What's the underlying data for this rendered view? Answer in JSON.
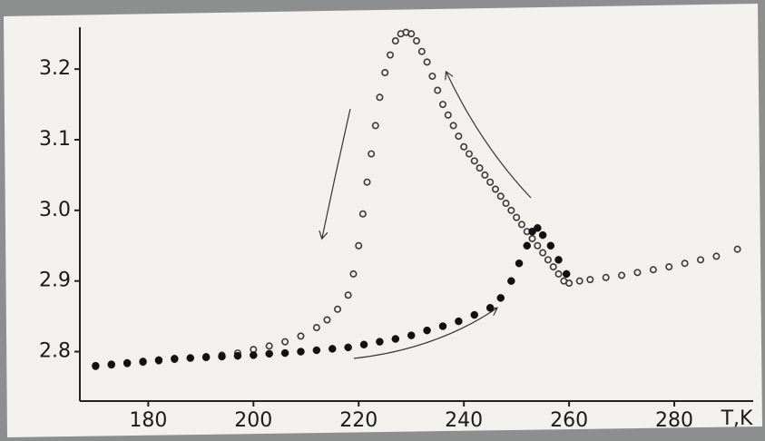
{
  "chart_data": {
    "type": "scatter",
    "x_label": "T,K",
    "xlim": [
      167,
      295
    ],
    "xticks": [
      180,
      200,
      220,
      240,
      260,
      280
    ],
    "ylim": [
      2.73,
      3.285
    ],
    "yticks": [
      2.8,
      2.9,
      {
        "value": 3,
        "label": "3.0"
      },
      3.1,
      3.2
    ],
    "series": [
      {
        "color": "#3a3a3a",
        "marker": "open",
        "x": [
          170,
          173,
          176,
          179,
          182,
          185,
          188,
          191,
          194,
          197,
          200,
          203,
          206,
          209,
          212,
          214,
          216,
          218,
          219,
          220,
          220.8,
          221.6,
          222.4,
          223.2,
          224,
          225,
          226,
          227,
          228,
          229,
          230,
          231,
          232,
          233,
          234,
          235,
          236,
          237,
          238,
          239,
          240,
          241,
          242,
          243,
          244,
          245,
          246,
          247,
          248,
          249,
          250,
          251,
          252,
          253,
          254,
          255,
          256,
          257,
          258,
          259,
          260,
          262,
          264,
          267,
          270,
          273,
          276,
          279,
          282,
          285,
          288,
          292
        ],
        "values": [
          2.779,
          2.781,
          2.783,
          2.785,
          2.787,
          2.789,
          2.791,
          2.793,
          2.795,
          2.798,
          2.803,
          2.808,
          2.814,
          2.822,
          2.834,
          2.845,
          2.86,
          2.88,
          2.91,
          2.95,
          2.995,
          3.04,
          3.08,
          3.12,
          3.16,
          3.195,
          3.22,
          3.24,
          3.25,
          3.252,
          3.25,
          3.24,
          3.225,
          3.21,
          3.19,
          3.17,
          3.15,
          3.135,
          3.12,
          3.105,
          3.09,
          3.08,
          3.07,
          3.06,
          3.05,
          3.04,
          3.03,
          3.02,
          3.01,
          3.0,
          2.99,
          2.98,
          2.97,
          2.96,
          2.95,
          2.94,
          2.93,
          2.92,
          2.91,
          2.9,
          2.897,
          2.9,
          2.902,
          2.905,
          2.908,
          2.912,
          2.916,
          2.92,
          2.925,
          2.93,
          2.935,
          2.945
        ]
      },
      {
        "color": "#111111",
        "marker": "filled",
        "x": [
          170,
          173,
          176,
          179,
          182,
          185,
          188,
          191,
          194,
          197,
          200,
          203,
          206,
          209,
          212,
          215,
          218,
          221,
          224,
          227,
          230,
          233,
          236,
          239,
          242,
          245,
          247,
          249,
          250.5,
          252,
          253,
          254,
          255,
          256.5,
          258,
          259.5
        ],
        "values": [
          2.78,
          2.782,
          2.784,
          2.786,
          2.788,
          2.79,
          2.791,
          2.792,
          2.793,
          2.794,
          2.795,
          2.797,
          2.798,
          2.8,
          2.802,
          2.804,
          2.806,
          2.81,
          2.814,
          2.818,
          2.823,
          2.83,
          2.836,
          2.843,
          2.852,
          2.862,
          2.876,
          2.9,
          2.925,
          2.95,
          2.97,
          2.975,
          2.965,
          2.95,
          2.93,
          2.91
        ]
      }
    ]
  }
}
